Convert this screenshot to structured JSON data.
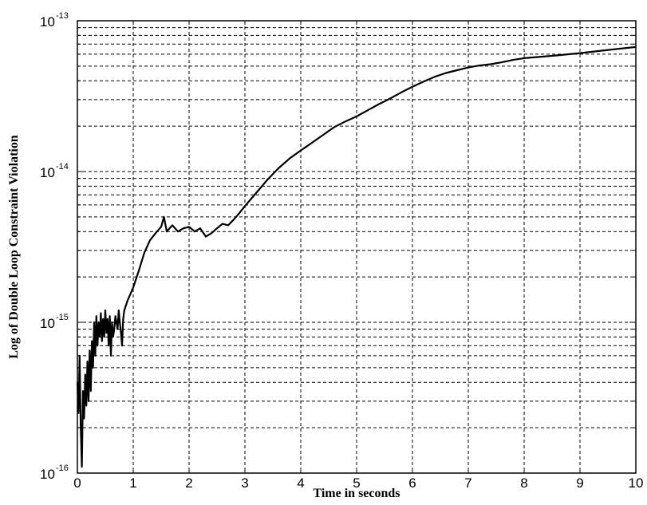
{
  "chart_data": {
    "type": "line",
    "xlabel": "Time in seconds",
    "ylabel": "Log of  Double Loop Constraint Violation",
    "xlim": [
      0,
      10
    ],
    "ylim": [
      1e-16,
      1e-13
    ],
    "yscale": "log",
    "grid": true,
    "grid_style": "dashed",
    "line_color": "#000000",
    "x_ticks": [
      "0",
      "1",
      "2",
      "3",
      "4",
      "5",
      "6",
      "7",
      "8",
      "9",
      "10"
    ],
    "y_ticks": [
      {
        "base": "10",
        "exp": "-16",
        "value": 1e-16
      },
      {
        "base": "10",
        "exp": "-15",
        "value": 1e-15
      },
      {
        "base": "10",
        "exp": "-14",
        "value": 1e-14
      },
      {
        "base": "10",
        "exp": "-13",
        "value": 1e-13
      }
    ],
    "series": [
      {
        "x": [
          0.0,
          0.02,
          0.04,
          0.06,
          0.08,
          0.1,
          0.12,
          0.14,
          0.16,
          0.18,
          0.2,
          0.22,
          0.24,
          0.26,
          0.28,
          0.3,
          0.32,
          0.34,
          0.36,
          0.38,
          0.4,
          0.42,
          0.44,
          0.46,
          0.48,
          0.5,
          0.52,
          0.54,
          0.56,
          0.58,
          0.6,
          0.62,
          0.64,
          0.66,
          0.68,
          0.7,
          0.72,
          0.74,
          0.76,
          0.78,
          0.8,
          0.82,
          0.84,
          0.9,
          1.0,
          1.1,
          1.2,
          1.3,
          1.4,
          1.5,
          1.55,
          1.6,
          1.7,
          1.8,
          1.9,
          2.0,
          2.1,
          2.2,
          2.3,
          2.4,
          2.5,
          2.6,
          2.7,
          2.8,
          2.9,
          3.0,
          3.2,
          3.4,
          3.6,
          3.8,
          4.0,
          4.2,
          4.4,
          4.6,
          4.8,
          5.0,
          5.2,
          5.4,
          5.6,
          5.8,
          6.0,
          6.2,
          6.4,
          6.6,
          6.8,
          7.0,
          7.2,
          7.4,
          7.6,
          7.8,
          8.0,
          8.5,
          9.0,
          9.5,
          10.0
        ],
        "y": [
          4e-16,
          2.5e-16,
          6e-16,
          2e-16,
          1.1e-16,
          3.5e-16,
          2.3e-16,
          4.5e-16,
          2.8e-16,
          5.5e-16,
          3e-16,
          6.5e-16,
          3.5e-16,
          7.5e-16,
          5e-16,
          1e-15,
          6e-16,
          1.1e-15,
          7e-16,
          1e-15,
          8e-16,
          1.15e-15,
          7.5e-16,
          1.05e-15,
          8e-16,
          1.2e-15,
          8.5e-16,
          1.05e-15,
          7e-16,
          1.1e-15,
          6e-16,
          1e-15,
          8e-16,
          9e-16,
          1.1e-15,
          1e-15,
          9e-16,
          1.2e-15,
          1e-15,
          8.5e-16,
          7e-16,
          1.05e-15,
          1.2e-15,
          1.4e-15,
          1.7e-15,
          2.2e-15,
          2.9e-15,
          3.5e-15,
          3.9e-15,
          4.3e-15,
          5e-15,
          4e-15,
          4.4e-15,
          4e-15,
          4.2e-15,
          4.3e-15,
          4e-15,
          4.2e-15,
          3.7e-15,
          3.9e-15,
          4.2e-15,
          4.5e-15,
          4.4e-15,
          4.8e-15,
          5.3e-15,
          5.9e-15,
          7.2e-15,
          8.8e-15,
          1.05e-14,
          1.22e-14,
          1.38e-14,
          1.55e-14,
          1.75e-14,
          1.97e-14,
          2.15e-14,
          2.32e-14,
          2.55e-14,
          2.8e-14,
          3.05e-14,
          3.35e-14,
          3.65e-14,
          3.95e-14,
          4.25e-14,
          4.5e-14,
          4.7e-14,
          4.9e-14,
          5.05e-14,
          5.15e-14,
          5.3e-14,
          5.5e-14,
          5.65e-14,
          5.85e-14,
          6.1e-14,
          6.4e-14,
          6.7e-14
        ]
      }
    ]
  }
}
